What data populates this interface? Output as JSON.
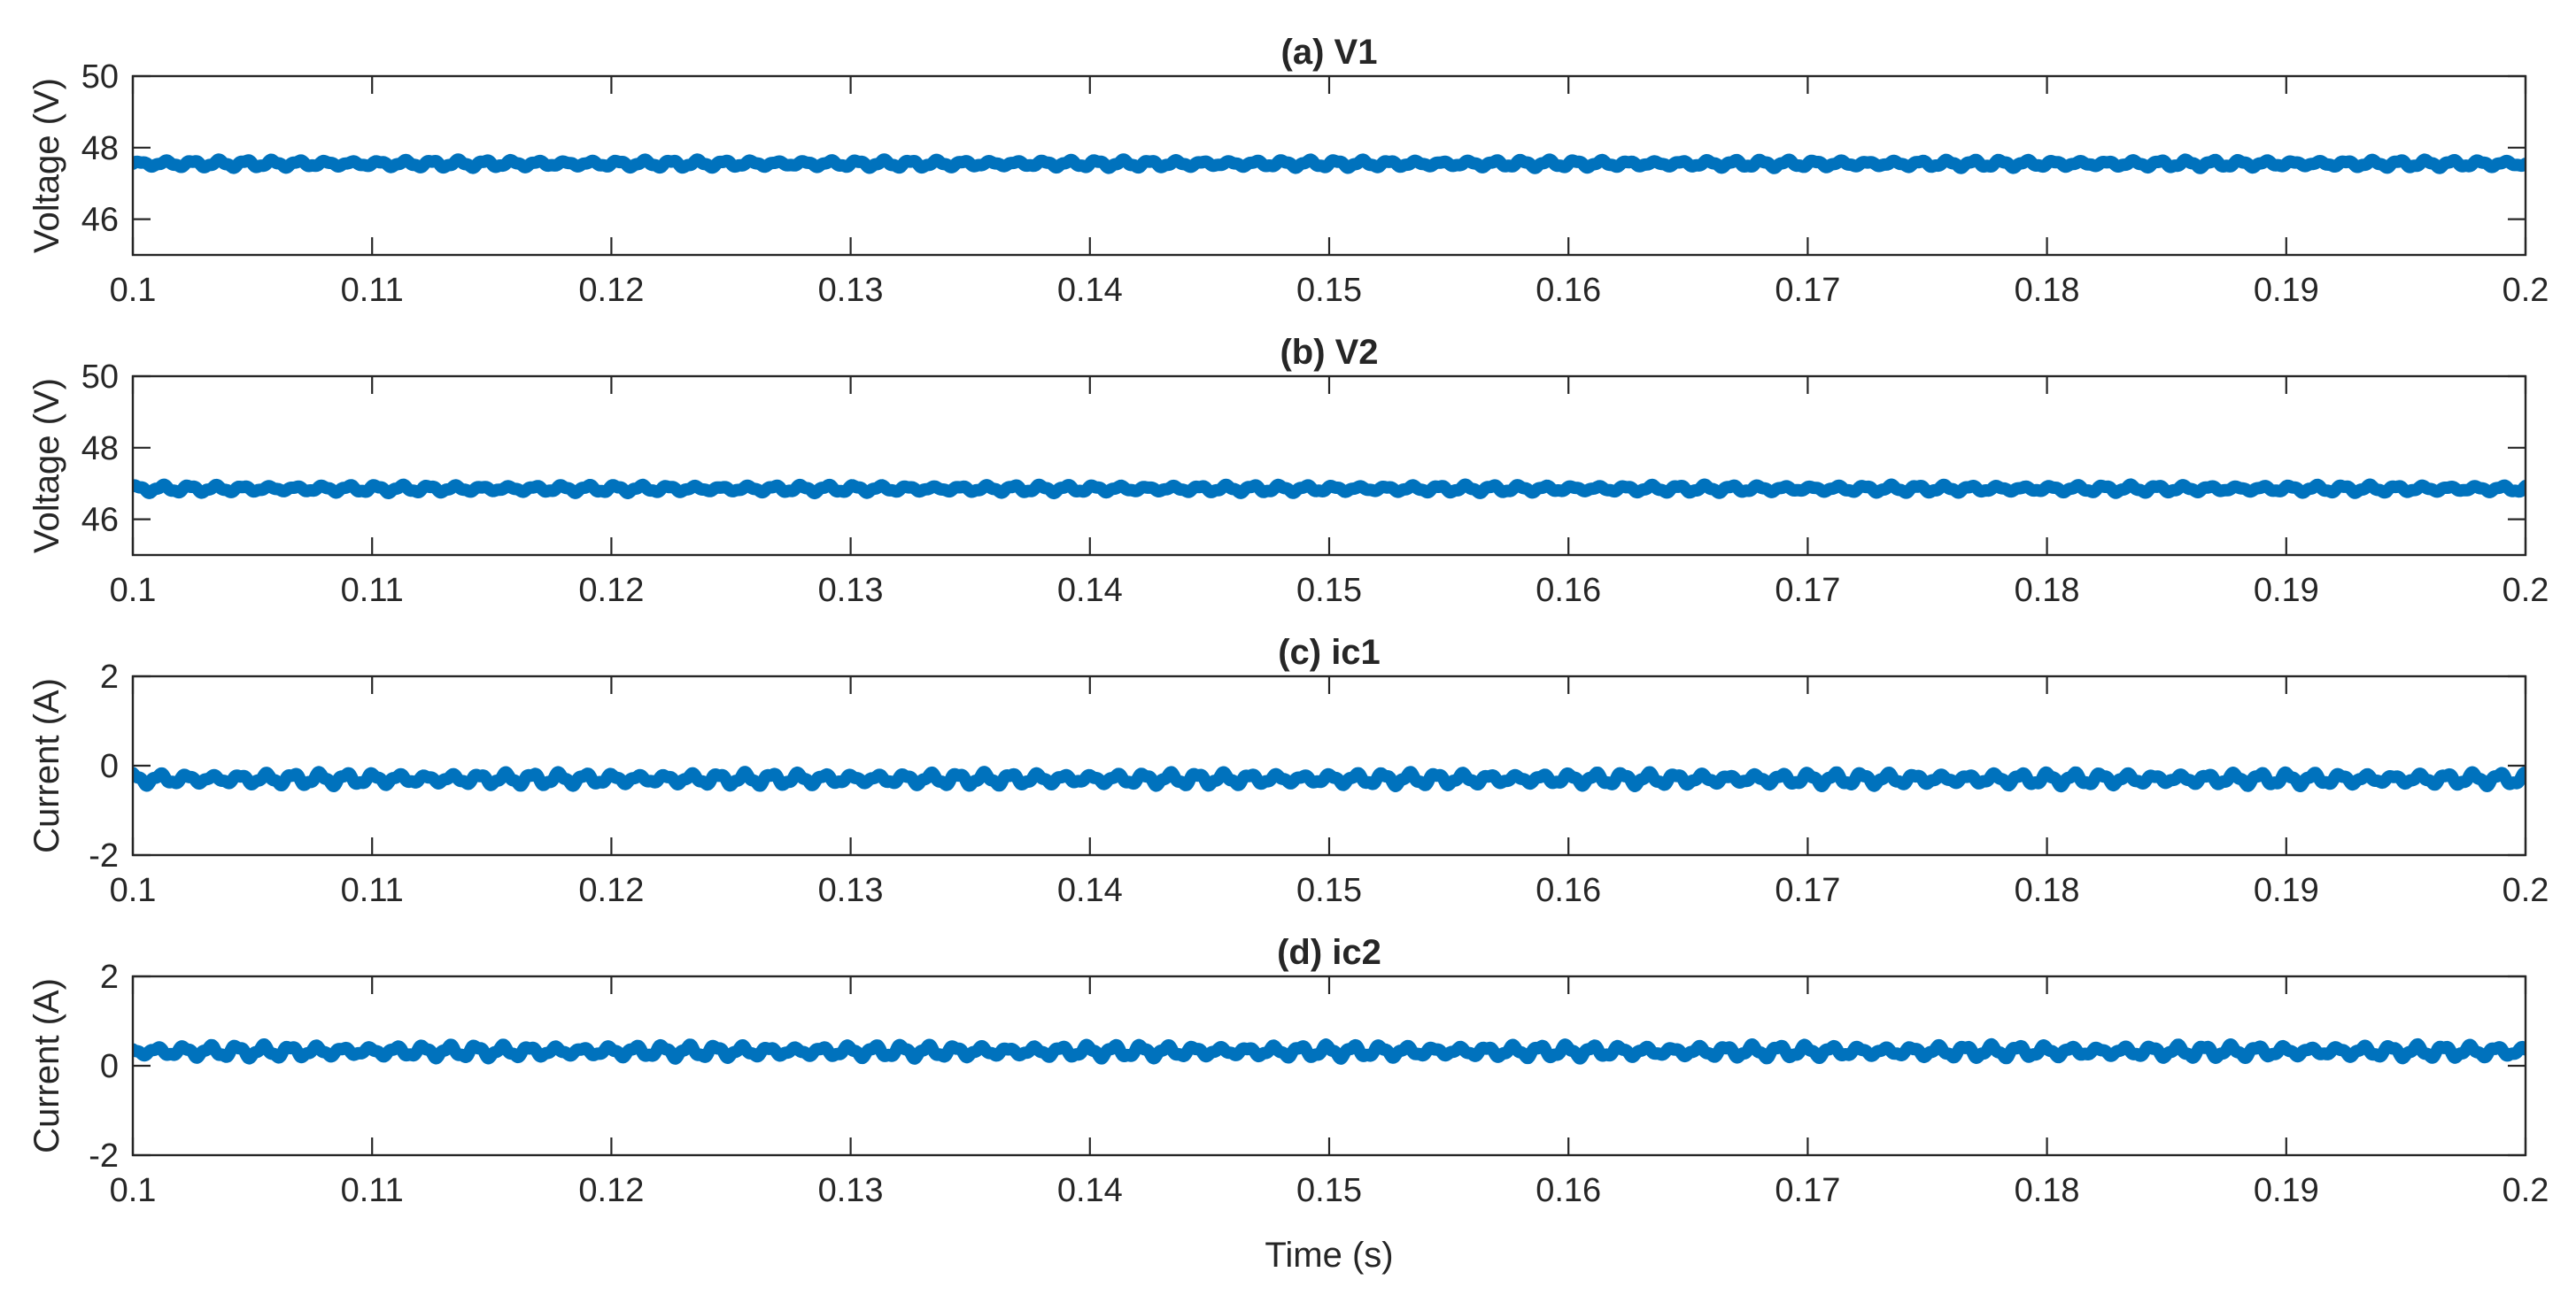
{
  "chart_data": [
    {
      "type": "line",
      "title": "(a) V1",
      "xlabel": "",
      "ylabel": "Voltage (V)",
      "xlim": [
        0.1,
        0.2
      ],
      "ylim": [
        45,
        50
      ],
      "xticks": [
        "0.1",
        "0.11",
        "0.12",
        "0.13",
        "0.14",
        "0.15",
        "0.16",
        "0.17",
        "0.18",
        "0.19",
        "0.2"
      ],
      "yticks": [
        "46",
        "48",
        "50"
      ],
      "grid": false,
      "series": [
        {
          "x": [
            0.1,
            0.2
          ],
          "y": [
            47.55,
            47.55
          ],
          "ripple": 0.12,
          "color": "#0072BD"
        }
      ]
    },
    {
      "type": "line",
      "title": "(b) V2",
      "xlabel": "",
      "ylabel": "Voltage (V)",
      "xlim": [
        0.1,
        0.2
      ],
      "ylim": [
        45,
        50
      ],
      "xticks": [
        "0.1",
        "0.11",
        "0.12",
        "0.13",
        "0.14",
        "0.15",
        "0.16",
        "0.17",
        "0.18",
        "0.19",
        "0.2"
      ],
      "yticks": [
        "46",
        "48",
        "50"
      ],
      "grid": false,
      "series": [
        {
          "x": [
            0.1,
            0.2
          ],
          "y": [
            46.85,
            46.85
          ],
          "ripple": 0.12,
          "color": "#0072BD"
        }
      ]
    },
    {
      "type": "line",
      "title": "(c) ic1",
      "xlabel": "",
      "ylabel": "Current (A)",
      "xlim": [
        0.1,
        0.2
      ],
      "ylim": [
        -2,
        2
      ],
      "xticks": [
        "0.1",
        "0.11",
        "0.12",
        "0.13",
        "0.14",
        "0.15",
        "0.16",
        "0.17",
        "0.18",
        "0.19",
        "0.2"
      ],
      "yticks": [
        "-2",
        "0",
        "2"
      ],
      "grid": false,
      "series": [
        {
          "x": [
            0.1,
            0.2
          ],
          "y": [
            -0.3,
            -0.3
          ],
          "ripple": 0.16,
          "color": "#0072BD"
        }
      ]
    },
    {
      "type": "line",
      "title": "(d) ic2",
      "xlabel": "Time (s)",
      "ylabel": "Current (A)",
      "xlim": [
        0.1,
        0.2
      ],
      "ylim": [
        -2,
        2
      ],
      "xticks": [
        "0.1",
        "0.11",
        "0.12",
        "0.13",
        "0.14",
        "0.15",
        "0.16",
        "0.17",
        "0.18",
        "0.19",
        "0.2"
      ],
      "yticks": [
        "-2",
        "0",
        "2"
      ],
      "grid": false,
      "series": [
        {
          "x": [
            0.1,
            0.2
          ],
          "y": [
            0.32,
            0.32
          ],
          "ripple": 0.16,
          "color": "#0072BD"
        }
      ]
    }
  ]
}
